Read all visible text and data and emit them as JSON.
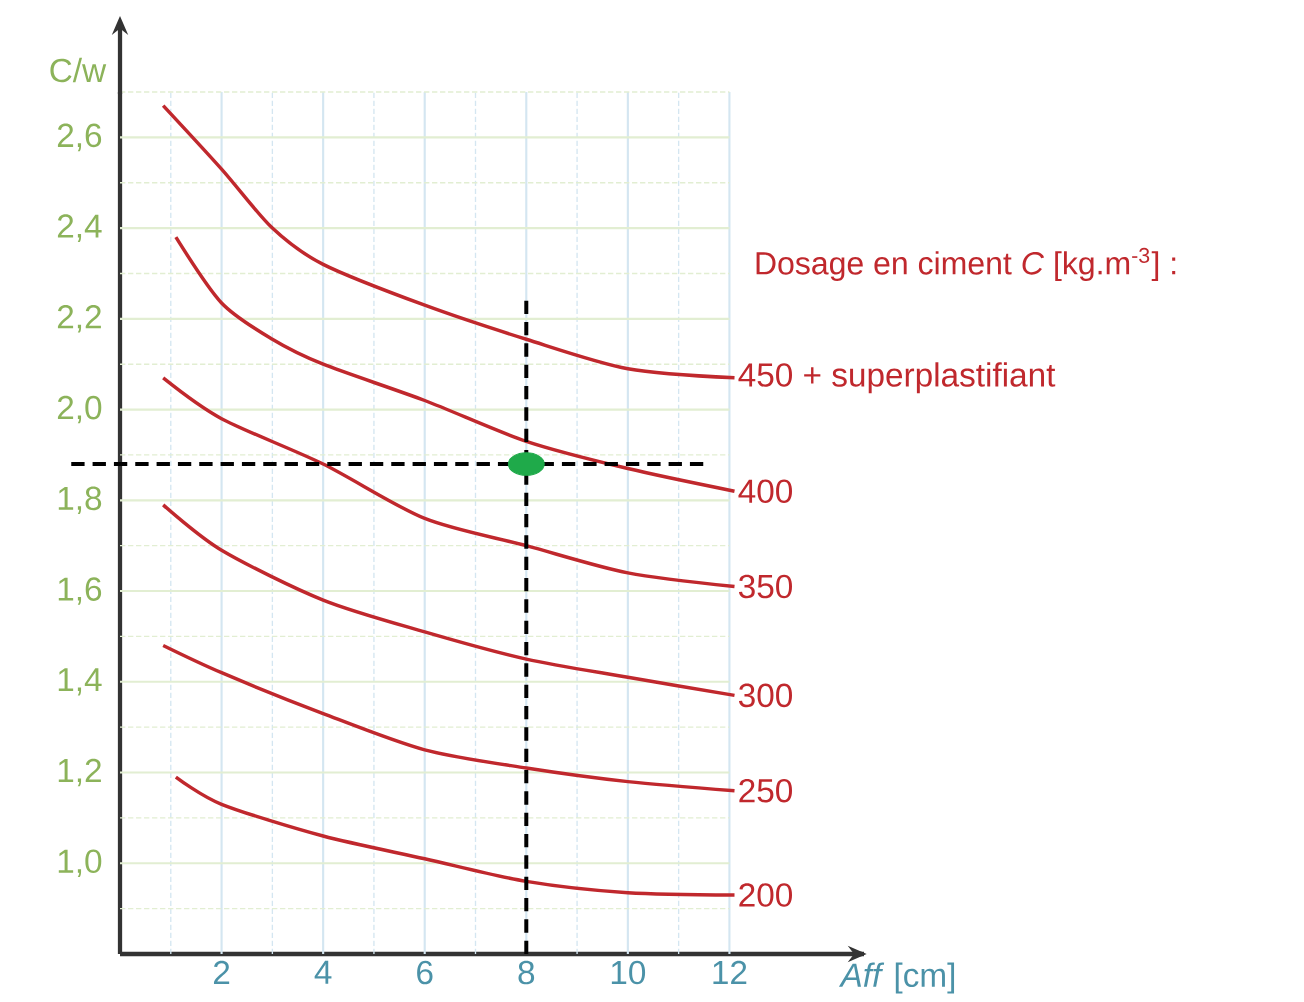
{
  "chart_data": {
    "type": "line",
    "ylabel": "C/w",
    "xlabel": "*Aff* [cm]",
    "legend_title": "Dosage en ciment *C* [kg.m$^{-3}$] :",
    "xlim": [
      0,
      14.65
    ],
    "ylim": [
      0.8,
      2.7
    ],
    "xticks": [
      2,
      4,
      6,
      8,
      10,
      12
    ],
    "yticks": [
      {
        "value": 1.0,
        "label": "1,0"
      },
      {
        "value": 1.2,
        "label": "1,2"
      },
      {
        "value": 1.4,
        "label": "1,4"
      },
      {
        "value": 1.6,
        "label": "1,6"
      },
      {
        "value": 1.8,
        "label": "1,8"
      },
      {
        "value": 2.0,
        "label": "2,0"
      },
      {
        "value": 2.2,
        "label": "2,2"
      },
      {
        "value": 2.4,
        "label": "2,4"
      },
      {
        "value": 2.6,
        "label": "2,6"
      }
    ],
    "grid": true,
    "ref_lines": [
      {
        "axis": "y",
        "value": 1.88,
        "color": "#000000",
        "line_style": "dashed"
      },
      {
        "axis": "x",
        "value": 8,
        "color": "#000000",
        "line_style": "dashed"
      }
    ],
    "series": [
      {
        "name": "450 + superplastifiant",
        "color": "#c0282d",
        "x": [
          0.85,
          2,
          3,
          4,
          6,
          8,
          10,
          12.1
        ],
        "values": [
          2.67,
          2.53,
          2.4,
          2.32,
          2.23,
          2.155,
          2.09,
          2.07
        ]
      },
      {
        "name": "400",
        "color": "#c0282d",
        "x": [
          1.1,
          2,
          3,
          4,
          6,
          8,
          10,
          12.1
        ],
        "values": [
          2.38,
          2.235,
          2.155,
          2.1,
          2.02,
          1.93,
          1.87,
          1.82
        ]
      },
      {
        "name": "350",
        "color": "#c0282d",
        "x": [
          0.85,
          2,
          4,
          6,
          8,
          10,
          12.1
        ],
        "values": [
          2.07,
          1.98,
          1.88,
          1.76,
          1.7,
          1.64,
          1.61
        ]
      },
      {
        "name": "300",
        "color": "#c0282d",
        "x": [
          0.85,
          2,
          4,
          6,
          8,
          10,
          12.1
        ],
        "values": [
          1.79,
          1.69,
          1.58,
          1.51,
          1.45,
          1.41,
          1.37
        ]
      },
      {
        "name": "250",
        "color": "#c0282d",
        "x": [
          0.85,
          2,
          4,
          6,
          8,
          10,
          12.1
        ],
        "values": [
          1.48,
          1.42,
          1.33,
          1.25,
          1.21,
          1.18,
          1.16
        ]
      },
      {
        "name": "200",
        "color": "#c0282d",
        "x": [
          1.1,
          2,
          4,
          6,
          8,
          10,
          12.1
        ],
        "values": [
          1.19,
          1.13,
          1.06,
          1.01,
          0.96,
          0.935,
          0.93
        ]
      },
      {
        "type": "scatter",
        "color": "#1faa4a",
        "x": [
          8
        ],
        "values": [
          1.88
        ]
      }
    ]
  }
}
